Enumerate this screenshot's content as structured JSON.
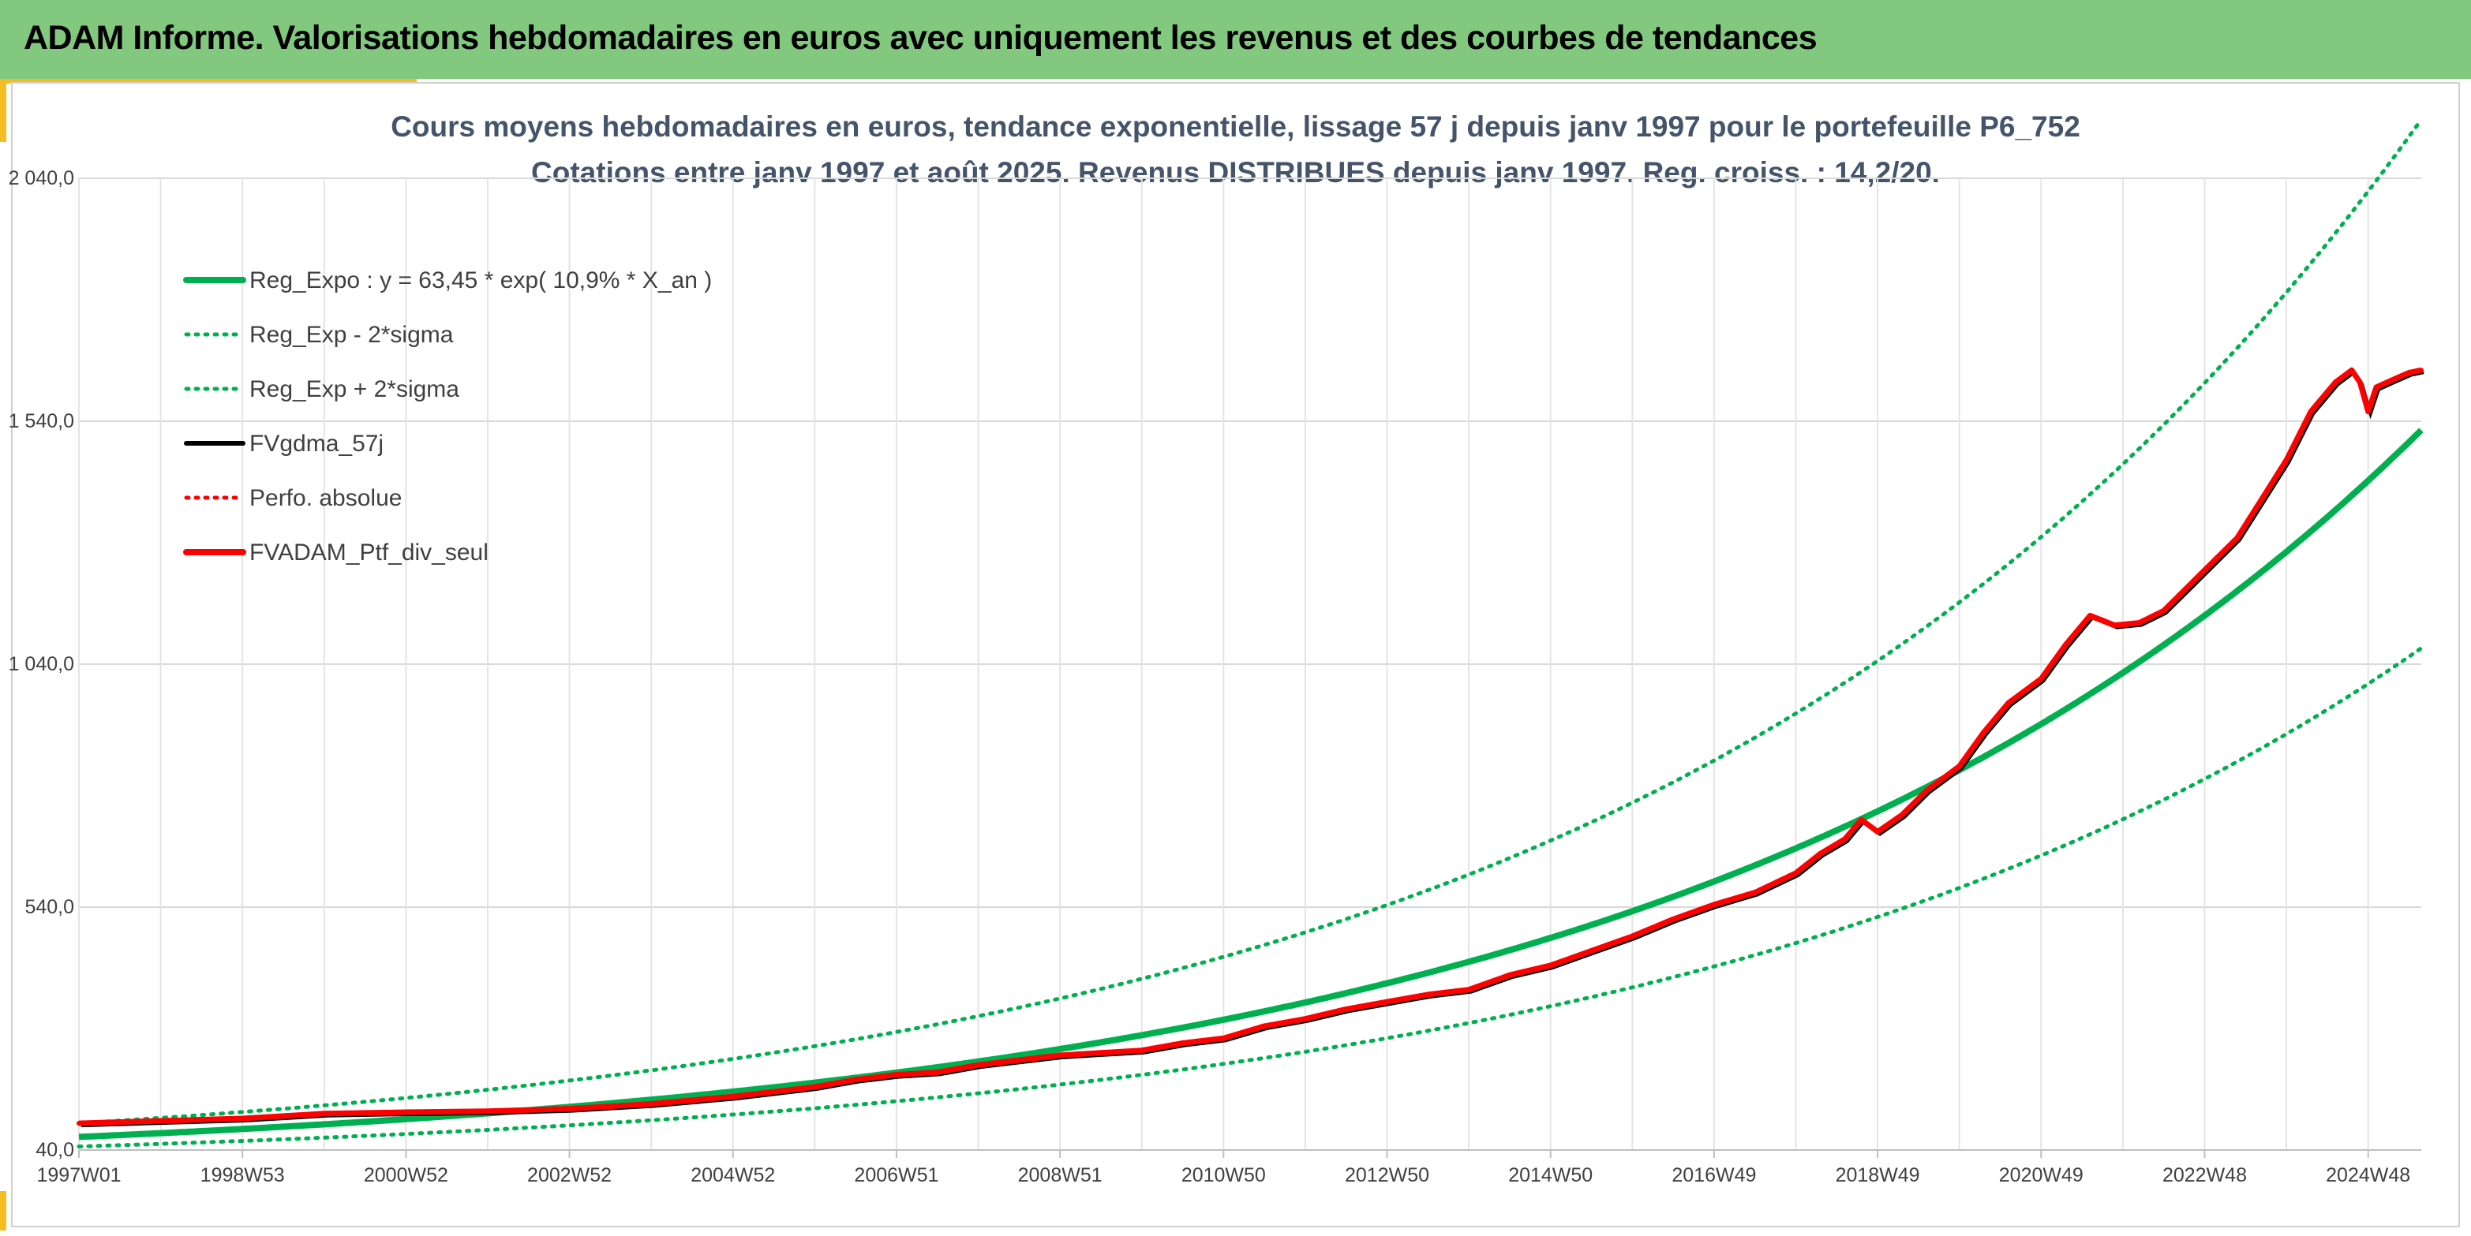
{
  "banner": {
    "title": "ADAM Informe. Valorisations hebdomadaires en euros avec uniquement les revenus et des courbes de tendances"
  },
  "colors": {
    "banner": "#82c97f",
    "accent": "#f5bd22",
    "regression": "#00b050",
    "smoothed": "#000000",
    "portfolio": "#ff0000",
    "title_text": "#44546a"
  },
  "chart_data": {
    "type": "line",
    "title": "Cours moyens hebdomadaires en euros, tendance exponentielle, lissage 57 j depuis janv 1997 pour le portefeuille P6_752",
    "subtitle": "Cotations entre janv 1997 et août 2025. Revenus DISTRIBUES depuis janv 1997. Reg. croiss. : 14,2/20.",
    "x_unit": "year",
    "xlim": [
      1997.0,
      2025.65
    ],
    "ylim": [
      40,
      2040
    ],
    "y_ticks": [
      40,
      540,
      1040,
      1540,
      2040
    ],
    "y_tick_labels": [
      "40,0",
      "540,0",
      "1 040,0",
      "1 540,0",
      "2 040,0"
    ],
    "x_tick_labels": [
      "1997W01",
      "1998W53",
      "2000W52",
      "2002W52",
      "2004W52",
      "2006W51",
      "2008W51",
      "2010W50",
      "2012W50",
      "2014W50",
      "2016W49",
      "2018W49",
      "2020W49",
      "2022W48",
      "2024W48"
    ],
    "x_tick_values": [
      1997.0,
      1999.0,
      2001.0,
      2003.0,
      2005.0,
      2007.0,
      2009.0,
      2011.0,
      2013.0,
      2015.0,
      2017.0,
      2019.0,
      2021.0,
      2023.0,
      2025.0
    ],
    "grid": true,
    "legend_position": "top-left",
    "regression": {
      "a": 63.45,
      "rate": 0.109
    },
    "band_factor": {
      "lower": 0.705,
      "upper": 1.42
    },
    "series": [
      {
        "name": "Reg_Expo : y = 63,45 * exp( 10,9% *  X_an )",
        "style": "solid-thick",
        "color": "#00b050",
        "kind": "regression"
      },
      {
        "name": "Reg_Exp - 2*sigma",
        "style": "dotted",
        "color": "#00b050",
        "kind": "lower_band"
      },
      {
        "name": "Reg_Exp + 2*sigma",
        "style": "dotted",
        "color": "#00b050",
        "kind": "upper_band"
      },
      {
        "name": "FVgdma_57j",
        "style": "solid",
        "color": "#000000",
        "kind": "smoothed"
      },
      {
        "name": "Perfo. absolue",
        "style": "dotted",
        "color": "#ff0000",
        "kind": "absolute"
      },
      {
        "name": "FVADAM_Ptf_div_seul",
        "style": "solid-thick",
        "color": "#ff0000",
        "kind": "portfolio",
        "x": [
          1997.0,
          1998.0,
          1999.0,
          2000.0,
          2001.0,
          2002.0,
          2003.0,
          2004.0,
          2005.0,
          2006.0,
          2006.5,
          2007.0,
          2007.5,
          2008.0,
          2008.5,
          2009.0,
          2009.5,
          2010.0,
          2010.5,
          2011.0,
          2011.5,
          2012.0,
          2012.5,
          2013.0,
          2013.5,
          2014.0,
          2014.5,
          2015.0,
          2015.5,
          2016.0,
          2016.5,
          2017.0,
          2017.5,
          2018.0,
          2018.3,
          2018.6,
          2018.8,
          2019.0,
          2019.3,
          2019.6,
          2020.0,
          2020.3,
          2020.6,
          2021.0,
          2021.3,
          2021.6,
          2021.9,
          2022.2,
          2022.5,
          2022.8,
          2023.1,
          2023.4,
          2023.7,
          2024.0,
          2024.3,
          2024.6,
          2024.8,
          2024.9,
          2025.0,
          2025.1,
          2025.3,
          2025.5,
          2025.65
        ],
        "y": [
          95,
          100,
          105,
          115,
          118,
          120,
          125,
          135,
          150,
          170,
          185,
          195,
          200,
          215,
          225,
          235,
          240,
          245,
          260,
          270,
          295,
          310,
          330,
          345,
          360,
          370,
          400,
          420,
          450,
          480,
          515,
          545,
          570,
          610,
          650,
          680,
          720,
          695,
          730,
          780,
          830,
          900,
          960,
          1010,
          1080,
          1140,
          1120,
          1125,
          1150,
          1200,
          1250,
          1300,
          1380,
          1460,
          1560,
          1620,
          1645,
          1620,
          1560,
          1610,
          1625,
          1640,
          1645
        ]
      }
    ]
  }
}
